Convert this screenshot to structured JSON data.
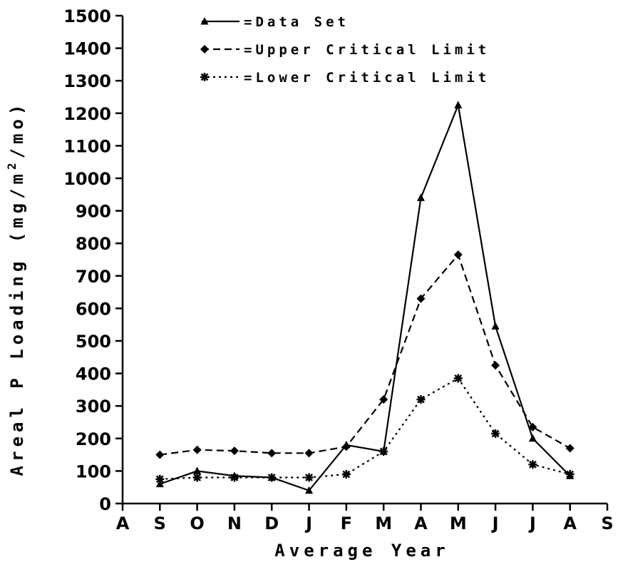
{
  "chart_data": {
    "type": "line",
    "title": "",
    "xlabel": "Average Year",
    "ylabel": "Areal P Loading (mg/m²/mo)",
    "ylabel_parts": {
      "main": "Areal P Loading (mg/m",
      "sup": "2",
      "tail": "/mo)"
    },
    "categories": [
      "A",
      "S",
      "O",
      "N",
      "D",
      "J",
      "F",
      "M",
      "A",
      "M",
      "J",
      "J",
      "A",
      "S"
    ],
    "ylim": [
      0,
      1500
    ],
    "yticks": [
      0,
      100,
      200,
      300,
      400,
      500,
      600,
      700,
      800,
      900,
      1000,
      1100,
      1200,
      1300,
      1400,
      1500
    ],
    "grid": false,
    "legend_position": "top",
    "series": [
      {
        "name": "=Data Set",
        "style": "solid",
        "marker": "triangle",
        "values": [
          null,
          60,
          100,
          85,
          80,
          40,
          180,
          160,
          940,
          1225,
          545,
          200,
          85,
          null
        ]
      },
      {
        "name": "=Upper Critical Limit",
        "style": "dashed",
        "marker": "diamond",
        "values": [
          null,
          150,
          165,
          162,
          155,
          155,
          175,
          320,
          630,
          765,
          425,
          235,
          170,
          null
        ]
      },
      {
        "name": "=Lower Critical Limit",
        "style": "dotted",
        "marker": "asterisk",
        "values": [
          null,
          75,
          80,
          80,
          80,
          80,
          90,
          160,
          320,
          385,
          215,
          120,
          90,
          null
        ]
      }
    ]
  }
}
